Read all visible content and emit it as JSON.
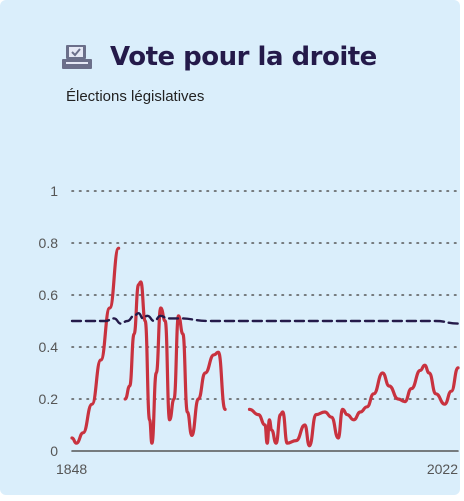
{
  "header": {
    "title": "Vote pour la droite",
    "subtitle": "Élections législatives",
    "icon": "ballot-box-icon"
  },
  "colors": {
    "background": "#daeefb",
    "title": "#241a4a",
    "series_line": "#c8323f",
    "reference_line": "#241a4a",
    "grid": "#555555"
  },
  "chart_data": {
    "type": "line",
    "title": "Vote pour la droite",
    "subtitle": "Élections législatives",
    "xlabel": "",
    "ylabel": "",
    "xlim": [
      1848,
      2022
    ],
    "ylim": [
      0,
      1
    ],
    "y_ticks": [
      "0",
      "0.2",
      "0.4",
      "0.6",
      "0.8",
      "1"
    ],
    "y_tick_values": [
      0,
      0.2,
      0.4,
      0.6,
      0.8,
      1
    ],
    "x_tick_labels": [
      "1848",
      "2022"
    ],
    "grid": true,
    "series": [
      {
        "style": "solid",
        "segments": [
          [
            [
              1848,
              0.05
            ],
            [
              1850,
              0.03
            ],
            [
              1853,
              0.07
            ],
            [
              1857,
              0.18
            ],
            [
              1861,
              0.35
            ],
            [
              1865,
              0.55
            ],
            [
              1869,
              0.78
            ]
          ],
          [
            [
              1872,
              0.2
            ],
            [
              1874,
              0.25
            ],
            [
              1876,
              0.45
            ],
            [
              1878,
              0.64
            ],
            [
              1879,
              0.65
            ],
            [
              1881,
              0.5
            ],
            [
              1883,
              0.12
            ],
            [
              1884,
              0.03
            ],
            [
              1886,
              0.3
            ],
            [
              1888,
              0.55
            ],
            [
              1890,
              0.5
            ],
            [
              1892,
              0.12
            ],
            [
              1894,
              0.2
            ],
            [
              1896,
              0.52
            ],
            [
              1898,
              0.45
            ],
            [
              1900,
              0.15
            ],
            [
              1902,
              0.06
            ],
            [
              1905,
              0.2
            ],
            [
              1908,
              0.3
            ],
            [
              1912,
              0.37
            ],
            [
              1914,
              0.38
            ],
            [
              1917,
              0.16
            ]
          ],
          [
            [
              1928,
              0.16
            ],
            [
              1932,
              0.14
            ],
            [
              1935,
              0.1
            ],
            [
              1936,
              0.03
            ],
            [
              1937,
              0.12
            ],
            [
              1938,
              0.08
            ],
            [
              1940,
              0.03
            ],
            [
              1942,
              0.14
            ],
            [
              1943,
              0.15
            ],
            [
              1945,
              0.03
            ],
            [
              1949,
              0.04
            ],
            [
              1953,
              0.1
            ],
            [
              1955,
              0.02
            ],
            [
              1958,
              0.14
            ],
            [
              1962,
              0.15
            ],
            [
              1965,
              0.13
            ],
            [
              1968,
              0.05
            ],
            [
              1970,
              0.16
            ],
            [
              1972,
              0.14
            ],
            [
              1975,
              0.12
            ],
            [
              1978,
              0.15
            ],
            [
              1981,
              0.17
            ],
            [
              1984,
              0.22
            ],
            [
              1988,
              0.3
            ],
            [
              1991,
              0.25
            ],
            [
              1995,
              0.2
            ],
            [
              1998,
              0.19
            ],
            [
              2001,
              0.24
            ],
            [
              2005,
              0.31
            ],
            [
              2007,
              0.33
            ],
            [
              2009,
              0.3
            ],
            [
              2012,
              0.22
            ],
            [
              2016,
              0.18
            ],
            [
              2019,
              0.23
            ],
            [
              2022,
              0.32
            ]
          ]
        ]
      },
      {
        "style": "dashed",
        "segments": [
          [
            [
              1848,
              0.5
            ],
            [
              1855,
              0.5
            ],
            [
              1863,
              0.5
            ],
            [
              1867,
              0.51
            ],
            [
              1870,
              0.49
            ],
            [
              1873,
              0.5
            ],
            [
              1876,
              0.52
            ],
            [
              1878,
              0.53
            ],
            [
              1880,
              0.51
            ],
            [
              1882,
              0.52
            ],
            [
              1885,
              0.5
            ],
            [
              1888,
              0.52
            ],
            [
              1891,
              0.51
            ],
            [
              1896,
              0.51
            ],
            [
              1910,
              0.5
            ],
            [
              1940,
              0.5
            ],
            [
              1970,
              0.5
            ],
            [
              2000,
              0.5
            ],
            [
              2012,
              0.5
            ],
            [
              2022,
              0.49
            ]
          ]
        ]
      }
    ]
  }
}
